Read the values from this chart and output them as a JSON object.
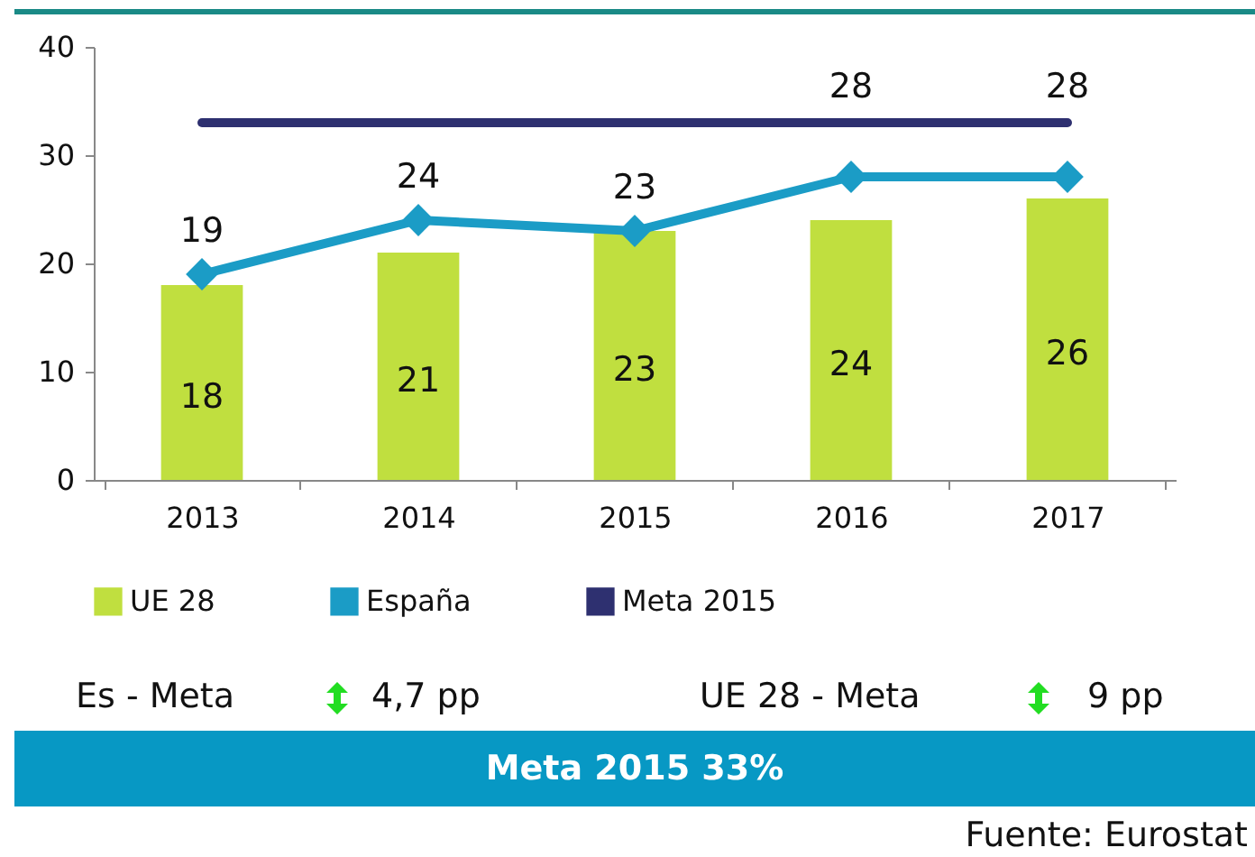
{
  "chart_data": {
    "type": "bar",
    "categories": [
      "2013",
      "2014",
      "2015",
      "2016",
      "2017"
    ],
    "series": [
      {
        "name": "UE 28",
        "color": "#c0df3f",
        "values": [
          18,
          21,
          23,
          24,
          26
        ],
        "value_labels": [
          "18",
          "21",
          "23",
          "24",
          "26"
        ]
      },
      {
        "name": "España",
        "type": "line",
        "color": "#1b9cc6",
        "marker": "diamond",
        "values": [
          19,
          24,
          23,
          28,
          28
        ],
        "value_labels": [
          "19",
          "24",
          "23",
          "28",
          "28"
        ]
      },
      {
        "name": "Meta 2015",
        "type": "line",
        "color": "#2e3070",
        "values": [
          33,
          33,
          33,
          33,
          33
        ]
      }
    ],
    "ylim": [
      0,
      40
    ],
    "yticks": [
      0,
      10,
      20,
      30,
      40
    ],
    "grid": false,
    "legend": "bottom",
    "annotations": [
      "Es - Meta",
      "4,7 pp",
      "UE 28 - Meta",
      "9 pp",
      "Meta 2015 33%",
      "Fuente: Eurostat"
    ]
  }
}
